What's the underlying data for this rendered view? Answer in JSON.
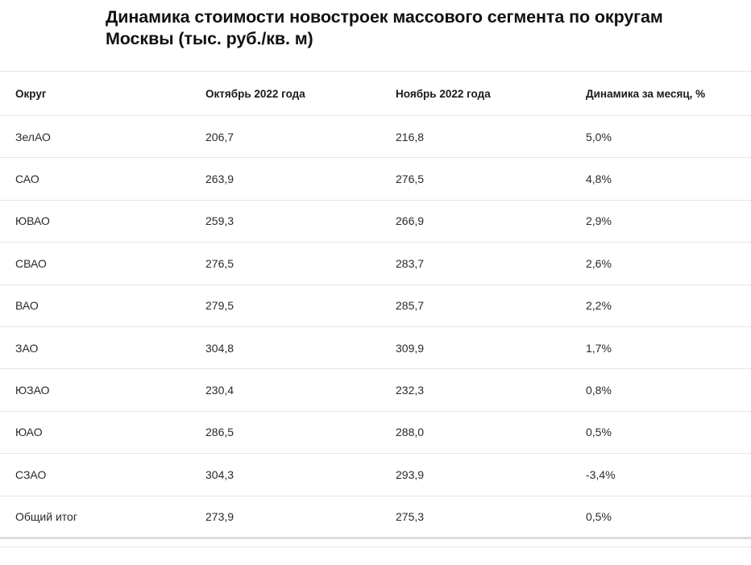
{
  "title": "Динамика стоимости новостроек массового сегмента по округам Москвы (тыс. руб./кв. м)",
  "chart_data": {
    "type": "table",
    "title": "Динамика стоимости новостроек массового сегмента по округам Москвы (тыс. руб./кв. м)",
    "columns": [
      "Округ",
      "Октябрь 2022 года",
      "Ноябрь 2022 года",
      "Динамика за месяц, %"
    ],
    "rows": [
      [
        "ЗелАО",
        "206,7",
        "216,8",
        "5,0%"
      ],
      [
        "САО",
        "263,9",
        "276,5",
        "4,8%"
      ],
      [
        "ЮВАО",
        "259,3",
        "266,9",
        "2,9%"
      ],
      [
        "СВАО",
        "276,5",
        "283,7",
        "2,6%"
      ],
      [
        "ВАО",
        "279,5",
        "285,7",
        "2,2%"
      ],
      [
        "ЗАО",
        "304,8",
        "309,9",
        "1,7%"
      ],
      [
        "ЮЗАО",
        "230,4",
        "232,3",
        "0,8%"
      ],
      [
        "ЮАО",
        "286,5",
        "288,0",
        "0,5%"
      ],
      [
        "СЗАО",
        "304,3",
        "293,9",
        "-3,4%"
      ],
      [
        "Общий итог",
        "273,9",
        "275,3",
        "0,5%"
      ]
    ]
  }
}
